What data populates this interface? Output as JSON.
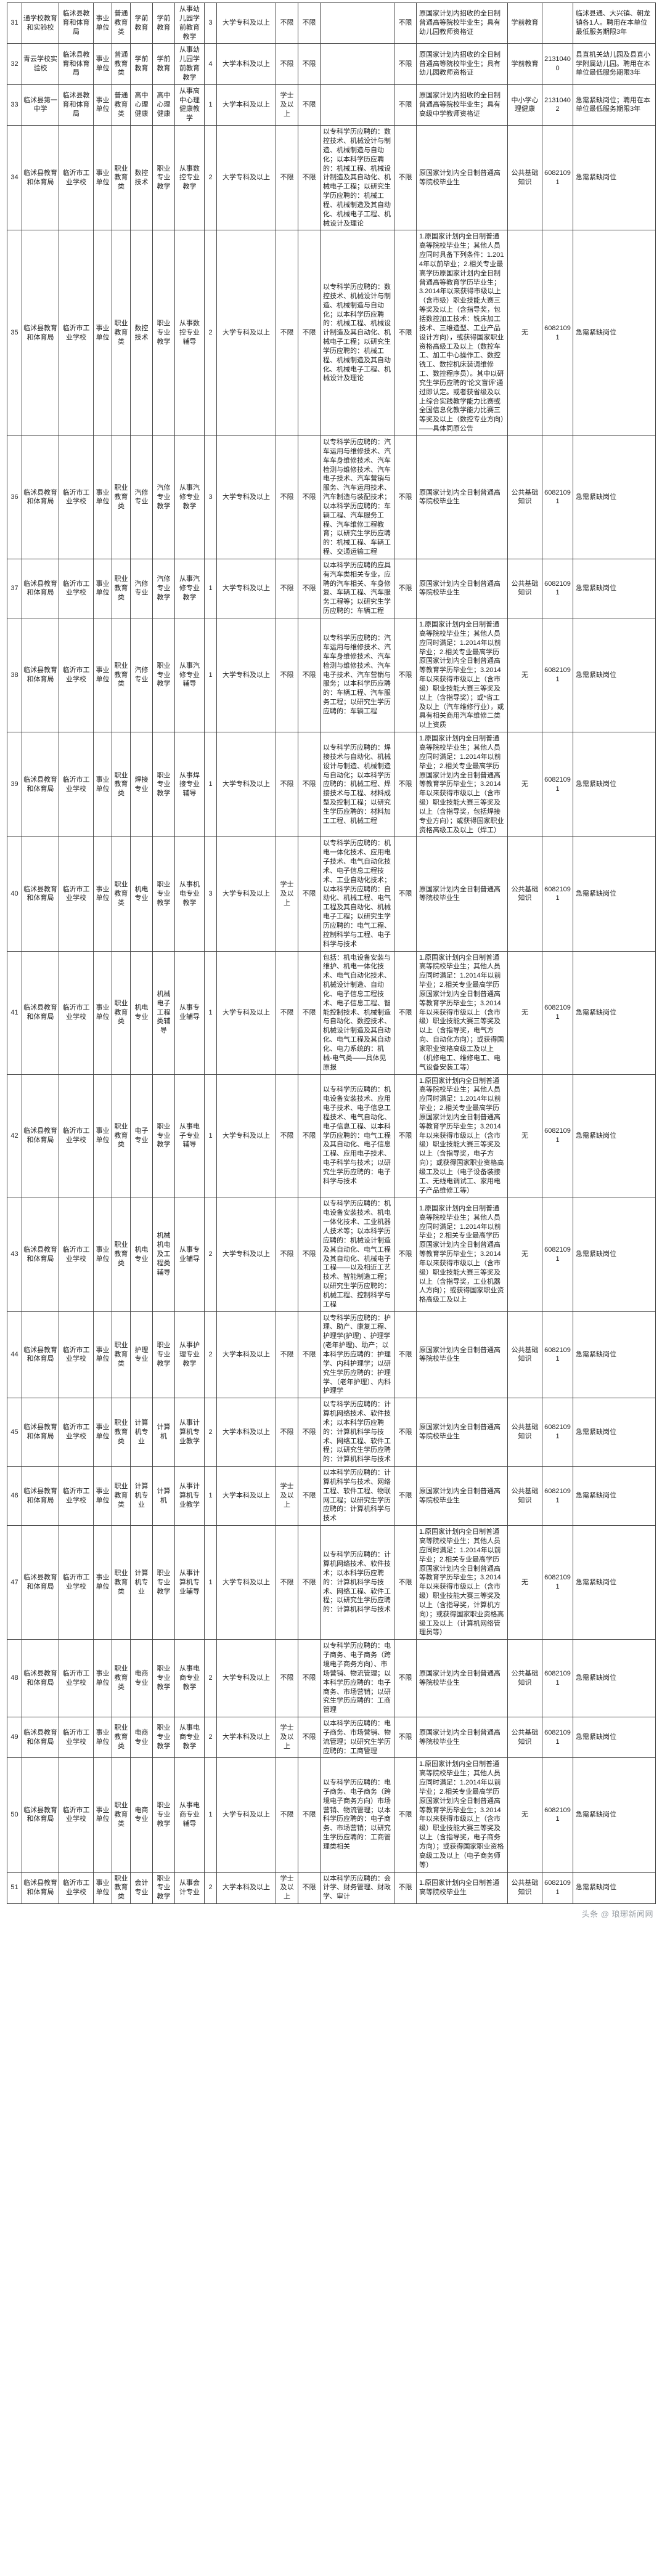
{
  "footer": "头条 @ 琅琊新闻网",
  "rows": [
    {
      "n": "31",
      "a": "通学校教育和实验校",
      "b": "临沭县教育和体育局",
      "c": "事业单位",
      "d": "普通教育类",
      "e": "学前教育",
      "f": "学前教育",
      "g": "从事幼儿园学前教育教学",
      "h": "3",
      "i": "大学专科及以上",
      "j": "不限",
      "k": "不限",
      "l": "",
      "m": "不限",
      "n2": "原国家计划内招收的全日制普通高等院校毕业生；具有幼儿园教师资格证",
      "o": "学前教育",
      "p": "",
      "q": "临沭县通、大兴镇、朝龙镇各1人。聘用在本单位最低服务期限3年"
    },
    {
      "n": "32",
      "a": "青云学校实验校",
      "b": "临沭县教育和体育局",
      "c": "事业单位",
      "d": "普通教育类",
      "e": "学前教育",
      "f": "学前教育",
      "g": "从事幼儿园学前教育教学",
      "h": "4",
      "i": "大学本科及以上",
      "j": "不限",
      "k": "不限",
      "l": "",
      "m": "不限",
      "n2": "原国家计划内招收的全日制普通高等院校毕业生；具有幼儿园教师资格证",
      "o": "学前教育",
      "p": "21310400",
      "q": "县直机关幼儿园及县直小学附属幼儿园。聘用在本单位最低服务期限3年"
    },
    {
      "n": "33",
      "a": "临沭县第一中学",
      "b": "临沭县教育和体育局",
      "c": "事业单位",
      "d": "普通教育类",
      "e": "高中心理健康",
      "f": "高中心理健康",
      "g": "从事高中心理健康教学",
      "h": "1",
      "i": "大学本科及以上",
      "j": "学士及以上",
      "k": "不限",
      "l": "",
      "m": "不限",
      "n2": "原国家计划内招收的全日制普通高等院校毕业生；具有高级中学教师资格证",
      "o": "中小学心理健康",
      "p": "21310402",
      "q": "急需紧缺岗位；聘用在本单位最低服务期限3年"
    },
    {
      "n": "34",
      "a": "临沭县教育和体育局",
      "b": "临沂市工业学校",
      "c": "事业单位",
      "d": "职业教育类",
      "e": "数控技术",
      "f": "职业专业教学",
      "g": "从事数控专业教学",
      "h": "2",
      "i": "大学专科及以上",
      "j": "不限",
      "k": "不限",
      "l": "以专科学历应聘的：数控技术、机械设计与制造、机械制造与自动化；以本科学历应聘的：机械工程、机械设计制造及其自动化、机械电子工程；以研究生学历应聘的：机械工程、机械制造及其自动化、机械电子工程、机械设计及理论",
      "m": "不限",
      "n2": "原国家计划内全日制普通高等院校毕业生",
      "o": "公共基础知识",
      "p": "60821091",
      "q": "急需紧缺岗位"
    },
    {
      "n": "35",
      "a": "临沭县教育和体育局",
      "b": "临沂市工业学校",
      "c": "事业单位",
      "d": "职业教育类",
      "e": "数控技术",
      "f": "职业专业教学",
      "g": "从事数控专业辅导",
      "h": "2",
      "i": "大学专科及以上",
      "j": "不限",
      "k": "不限",
      "l": "以专科学历应聘的：数控技术、机械设计与制造、机械制造与自动化；以本科学历应聘的：机械工程、机械设计制造及其自动化、机械电子工程；以研究生学历应聘的：机械工程、机械制造及其自动化、机械电子工程、机械设计及理论",
      "m": "不限",
      "n2": "1.原国家计划内全日制普通高等院校毕业生；其他人员应同时具备下列条件：1.2014年以前毕业；2.相关专业最高学历原国家计划内全日制普通高等教育学历毕业生；3.2014年以来获得市级以上（含市级）职业技能大赛三等奖及以上（含指导奖，包括数控加工技术：铣床加工技术、三维造型、工业产品设计方向），或获得国家职业资格高级工及以上（数控车工、加工中心操作工、数控铣工、数控机床装调维修工、数控程序员）。其中以研究生学历应聘的'论文盲评'通过即认定。或者获省级及以上综合实践教学能力比赛或全国信息化教学能力比赛三等奖及以上（数控专业方向）——具体同原公告",
      "o": "无",
      "p": "60821091",
      "q": "急需紧缺岗位"
    },
    {
      "n": "36",
      "a": "临沭县教育和体育局",
      "b": "临沂市工业学校",
      "c": "事业单位",
      "d": "职业教育类",
      "e": "汽修专业",
      "f": "汽修专业教学",
      "g": "从事汽修专业教学",
      "h": "3",
      "i": "大学专科及以上",
      "j": "不限",
      "k": "不限",
      "l": "以专科学历应聘的：汽车运用与维修技术、汽车车身维修技术、汽车检测与维修技术、汽车电子技术、汽车营销与服务、汽车运用技术、汽车制造与装配技术；以本科学历应聘的：车辆工程、汽车服务工程、汽车维修工程教育；以研究生学历应聘的：机械工程、车辆工程、交通运输工程",
      "m": "不限",
      "n2": "原国家计划内全日制普通高等院校毕业生",
      "o": "公共基础知识",
      "p": "60821091",
      "q": "急需紧缺岗位"
    },
    {
      "n": "37",
      "a": "临沭县教育和体育局",
      "b": "临沂市工业学校",
      "c": "事业单位",
      "d": "职业教育类",
      "e": "汽修专业",
      "f": "汽修专业教学",
      "g": "从事汽修专业教学",
      "h": "1",
      "i": "大学专科及以上",
      "j": "不限",
      "k": "不限",
      "l": "以本科学历应聘的应具有汽车类相关专业，应聘的汽车相关、车身修复、车辆工程、汽车服务工程等；以研究生学历应聘的：车辆工程",
      "m": "不限",
      "n2": "原国家计划内全日制普通高等院校毕业生",
      "o": "公共基础知识",
      "p": "60821091",
      "q": "急需紧缺岗位"
    },
    {
      "n": "38",
      "a": "临沭县教育和体育局",
      "b": "临沂市工业学校",
      "c": "事业单位",
      "d": "职业教育类",
      "e": "汽修专业",
      "f": "职业专业教学",
      "g": "从事汽修专业辅导",
      "h": "1",
      "i": "大学专科及以上",
      "j": "不限",
      "k": "不限",
      "l": "以专科学历应聘的：汽车运用与维修技术、汽车车身维修技术、汽车检测与维修技术、汽车电子技术、汽车营销与服务；以本科学历应聘的：车辆工程、汽车服务工程；以研究生学历应聘的：车辆工程",
      "m": "不限",
      "n2": "1.原国家计划内全日制普通高等院校毕业生；其他人员应同时满足：1.2014年以前毕业；2.相关专业最高学历原国家计划内全日制普通高等教育学历毕业生；3.2014年以来获得市级以上（含市级）职业技能大赛三等奖及以上（含指导奖）；或*省工及以上（汽车维修行业），或具有相关商用汽车维修二类以上资质",
      "o": "无",
      "p": "60821091",
      "q": "急需紧缺岗位"
    },
    {
      "n": "39",
      "a": "临沭县教育和体育局",
      "b": "临沂市工业学校",
      "c": "事业单位",
      "d": "职业教育类",
      "e": "焊接专业",
      "f": "职业专业教学",
      "g": "从事焊接专业辅导",
      "h": "1",
      "i": "大学专科及以上",
      "j": "不限",
      "k": "不限",
      "l": "以专科学历应聘的：焊接技术与自动化、机械设计与制造、机械制造与自动化；以本科学历应聘的：机械工程、焊接技术与工程、材料成型及控制工程；以研究生学历应聘的：材料加工工程、机械工程",
      "m": "不限",
      "n2": "1.原国家计划内全日制普通高等院校毕业生；其他人员应同时满足：1.2014年以前毕业；2.相关专业最高学历原国家计划内全日制普通高等教育学历毕业生；3.2014年以来获得市级以上（含市级）职业技能大赛三等奖及以上（含指导奖，包括焊接专业方向）；或获得国家职业资格高级工及以上（焊工）",
      "o": "无",
      "p": "60821091",
      "q": "急需紧缺岗位"
    },
    {
      "n": "40",
      "a": "临沭县教育和体育局",
      "b": "临沂市工业学校",
      "c": "事业单位",
      "d": "职业教育类",
      "e": "机电专业",
      "f": "职业专业教学",
      "g": "从事机电专业教学",
      "h": "3",
      "i": "大学专科及以上",
      "j": "学士及以上",
      "k": "不限",
      "l": "以专科学历应聘的：机电一体化技术、应用电子技术、电气自动化技术、电子信息工程技术、工业自动化技术；以本科学历应聘的：自动化、机械工程、电气工程及其自动化、机械电子工程；以研究生学历应聘的：电气工程、控制科学与工程、电子科学与技术",
      "m": "不限",
      "n2": "原国家计划内全日制普通高等院校毕业生",
      "o": "公共基础知识",
      "p": "60821091",
      "q": "急需紧缺岗位"
    },
    {
      "n": "41",
      "a": "临沭县教育和体育局",
      "b": "临沂市工业学校",
      "c": "事业单位",
      "d": "职业教育类",
      "e": "机电专业",
      "f": "机械电子工程类辅导",
      "g": "从事专业辅导",
      "h": "1",
      "i": "大学专科及以上",
      "j": "不限",
      "k": "不限",
      "l": "包括：机电设备安装与维护、机电一体化技术、电气自动化技术、机械设计制造、自动化、电子信息工程技术、电子信息工程、智能控制技术、机械制造与自动化、数控技术、机械设计制造及其自动化、电气工程及其自动化、电力系统的：机械-电气类——具体见原报",
      "m": "不限",
      "n2": "1.原国家计划内全日制普通高等院校毕业生；其他人员应同时满足：1.2014年以前毕业；2.相关专业最高学历原国家计划内全日制普通高等教育学历毕业生；3.2014年以来获得市级以上（含市级）职业技能大赛三等奖及以上（含指导奖，电气方向、自动化方向）；或获得国家职业资格高级工及以上（机修电工、维修电工、电气设备安装工等）",
      "o": "无",
      "p": "60821091",
      "q": "急需紧缺岗位"
    },
    {
      "n": "42",
      "a": "临沭县教育和体育局",
      "b": "临沂市工业学校",
      "c": "事业单位",
      "d": "职业教育类",
      "e": "电子专业",
      "f": "职业专业教学",
      "g": "从事电子专业辅导",
      "h": "1",
      "i": "大学专科及以上",
      "j": "不限",
      "k": "不限",
      "l": "以专科学历应聘的：机电设备安装技术、应用电子技术、电子信息工程技术、电气自动化、电子信息工程、以本科学历应聘的：电气工程及其自动化、电子信息工程、应用电子技术、电子科学与技术；以研究生学历应聘的：电子科学与技术",
      "m": "不限",
      "n2": "1.原国家计划内全日制普通高等院校毕业生；其他人员应同时满足：1.2014年以前毕业；2.相关专业最高学历原国家计划内全日制普通高等教育学历毕业生；3.2014年以来获得市级以上（含市级）职业技能大赛三等奖及以上（含指导奖，电子方向）；或获得国家职业资格高级工及以上（电子设备装接工、无线电调试工、家用电子产品维修工等）",
      "o": "无",
      "p": "60821091",
      "q": "急需紧缺岗位"
    },
    {
      "n": "43",
      "a": "临沭县教育和体育局",
      "b": "临沂市工业学校",
      "c": "事业单位",
      "d": "职业教育类",
      "e": "机电专业",
      "f": "机械机电及工程类辅导",
      "g": "从事专业辅导",
      "h": "2",
      "i": "大学专科及以上",
      "j": "不限",
      "k": "不限",
      "l": "以专科学历应聘的：机电设备安装技术、机电一体化技术、工业机器人技术等；以本科学历应聘的：机械设计制造及其自动化、电气工程及其自动化、机械电子工程——以及相近工艺技术、智能制造工程；以研究生学历应聘的：机械工程、控制科学与工程",
      "m": "不限",
      "n2": "1.原国家计划内全日制普通高等院校毕业生；其他人员应同时满足：1.2014年以前毕业；2.相关专业最高学历原国家计划内全日制普通高等教育学历毕业生；3.2014年以来获得市级以上（含市级）职业技能大赛三等奖及以上（含指导奖，工业机器人方向）；或获得国家职业资格高级工及以上",
      "o": "无",
      "p": "60821091",
      "q": "急需紧缺岗位"
    },
    {
      "n": "44",
      "a": "临沭县教育和体育局",
      "b": "临沂市工业学校",
      "c": "事业单位",
      "d": "职业教育类",
      "e": "护理专业",
      "f": "职业专业教学",
      "g": "从事护理专业教学",
      "h": "2",
      "i": "大学本科及以上",
      "j": "不限",
      "k": "不限",
      "l": "以专科学历应聘的：护理、助产、康复工程、护理学(护理) 、护理学 (老年护理)、助产；以本科学历应聘的：护理学、内科护理学；以研究生学历应聘的：护理学、（老年护理）、内科护理学",
      "m": "不限",
      "n2": "原国家计划内全日制普通高等院校毕业生",
      "o": "公共基础知识",
      "p": "60821091",
      "q": "急需紧缺岗位"
    },
    {
      "n": "45",
      "a": "临沭县教育和体育局",
      "b": "临沂市工业学校",
      "c": "事业单位",
      "d": "职业教育类",
      "e": "计算机专业",
      "f": "计算机",
      "g": "从事计算机专业教学",
      "h": "2",
      "i": "大学本科及以上",
      "j": "不限",
      "k": "不限",
      "l": "以专科学历应聘的：计算机网络技术、软件技术；以本科学历应聘的：计算机科学与技术、网络工程、软件工程；以研究生学历应聘的：计算机科学与技术",
      "m": "不限",
      "n2": "原国家计划内全日制普通高等院校毕业生",
      "o": "公共基础知识",
      "p": "60821091",
      "q": "急需紧缺岗位"
    },
    {
      "n": "46",
      "a": "临沭县教育和体育局",
      "b": "临沂市工业学校",
      "c": "事业单位",
      "d": "职业教育类",
      "e": "计算机专业",
      "f": "计算机",
      "g": "从事计算机专业教学",
      "h": "1",
      "i": "大学本科及以上",
      "j": "学士及以上",
      "k": "不限",
      "l": "以本科学历应聘的：计算机科学与技术、网络工程、软件工程、物联网工程；以研究生学历应聘的：计算机科学与技术",
      "m": "不限",
      "n2": "原国家计划内全日制普通高等院校毕业生",
      "o": "公共基础知识",
      "p": "60821091",
      "q": "急需紧缺岗位"
    },
    {
      "n": "47",
      "a": "临沭县教育和体育局",
      "b": "临沂市工业学校",
      "c": "事业单位",
      "d": "职业教育类",
      "e": "计算机专业",
      "f": "职业专业教学",
      "g": "从事计算机专业辅导",
      "h": "1",
      "i": "大学专科及以上",
      "j": "不限",
      "k": "不限",
      "l": "以专科学历应聘的：计算机网络技术、软件技术；以本科学历应聘的：计算机科学与技术、网络工程、软件工程；以研究生学历应聘的：计算机科学与技术",
      "m": "不限",
      "n2": "1.原国家计划内全日制普通高等院校毕业生；其他人员应同时满足：1.2014年以前毕业；2.相关专业最高学历原国家计划内全日制普通高等教育学历毕业生；3.2014年以来获得市级以上（含市级）职业技能大赛三等奖及以上（含指导奖，计算机方向）；或获得国家职业资格高级工及以上（计算机网络管理员等）",
      "o": "无",
      "p": "60821091",
      "q": "急需紧缺岗位"
    },
    {
      "n": "48",
      "a": "临沭县教育和体育局",
      "b": "临沂市工业学校",
      "c": "事业单位",
      "d": "职业教育类",
      "e": "电商专业",
      "f": "职业专业教学",
      "g": "从事电商专业教学",
      "h": "2",
      "i": "大学专科及以上",
      "j": "不限",
      "k": "不限",
      "l": "以专科学历应聘的：电子商务、电子商务（跨境电子商务方向）、市场营销、物流管理；以本科学历应聘的：电子商务、市场营销；以研究生学历应聘的：工商管理",
      "m": "不限",
      "n2": "原国家计划内全日制普通高等院校毕业生",
      "o": "公共基础知识",
      "p": "60821091",
      "q": "急需紧缺岗位"
    },
    {
      "n": "49",
      "a": "临沭县教育和体育局",
      "b": "临沂市工业学校",
      "c": "事业单位",
      "d": "职业教育类",
      "e": "电商专业",
      "f": "职业专业教学",
      "g": "从事电商专业教学",
      "h": "2",
      "i": "大学本科及以上",
      "j": "学士及以上",
      "k": "不限",
      "l": "以本科学历应聘的：电子商务、市场营销、物流管理；以研究生学历应聘的：工商管理",
      "m": "不限",
      "n2": "原国家计划内全日制普通高等院校毕业生",
      "o": "公共基础知识",
      "p": "60821091",
      "q": "急需紧缺岗位"
    },
    {
      "n": "50",
      "a": "临沭县教育和体育局",
      "b": "临沂市工业学校",
      "c": "事业单位",
      "d": "职业教育类",
      "e": "电商专业",
      "f": "职业专业教学",
      "g": "从事电商专业辅导",
      "h": "1",
      "i": "大学专科及以上",
      "j": "不限",
      "k": "不限",
      "l": "以专科学历应聘的：电子商务、电子商务（跨境电子商务方向）市场营销、物流管理；以本科学历应聘的：电子商务、市场营销；以研究生学历应聘的：工商管理类相关",
      "m": "不限",
      "n2": "1.原国家计划内全日制普通高等院校毕业生；其他人员应同时满足：1.2014年以前毕业；2.相关专业最高学历原国家计划内全日制普通高等教育学历毕业生；3.2014年以来获得市级以上（含市级）职业技能大赛三等奖及以上（含指导奖，电子商务方向）；或获得国家职业资格高级工及以上（电子商务师等）",
      "o": "无",
      "p": "60821091",
      "q": "急需紧缺岗位"
    },
    {
      "n": "51",
      "a": "临沭县教育和体育局",
      "b": "临沂市工业学校",
      "c": "事业单位",
      "d": "职业教育类",
      "e": "会计专业",
      "f": "职业专业教学",
      "g": "从事会计专业",
      "h": "2",
      "i": "大学本科及以上",
      "j": "学士及以上",
      "k": "不限",
      "l": "以本科学历应聘的：会计学、财务管理、财政学、审计",
      "m": "不限",
      "n2": "1.原国家计划内全日制普通高等院校毕业生",
      "o": "公共基础知识",
      "p": "60821091",
      "q": "急需紧缺岗位"
    }
  ]
}
